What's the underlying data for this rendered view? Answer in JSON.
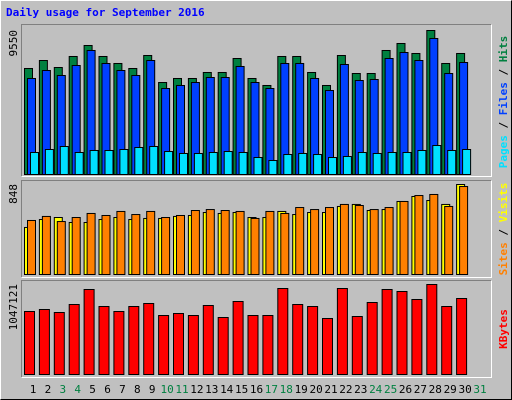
{
  "chart_data": [
    {
      "type": "bar",
      "title": "Daily usage for September 2016",
      "title_color": "#0000ff",
      "legend_separator": "/",
      "series": [
        {
          "name": "Pages",
          "color": "#00e0ff",
          "values": [
            1459,
            1658,
            1857,
            1459,
            1592,
            1592,
            1658,
            1791,
            1857,
            1525,
            1393,
            1393,
            1459,
            1525,
            1459,
            1127,
            928,
            1326,
            1393,
            1326,
            1127,
            1194,
            1459,
            1393,
            1459,
            1459,
            1592,
            1923,
            1592,
            1658,
            null
          ]
        },
        {
          "name": "Files",
          "color": "#0040ff",
          "values": [
            6367,
            6897,
            6566,
            7229,
            8224,
            7362,
            6897,
            6566,
            7560,
            5703,
            5903,
            6101,
            6433,
            6433,
            7163,
            6101,
            5703,
            7362,
            7362,
            6367,
            5571,
            7295,
            6234,
            6300,
            7693,
            8091,
            7560,
            9020,
            6698,
            7428,
            null
          ]
        },
        {
          "name": "Hits",
          "color": "#008040",
          "values": [
            7030,
            7560,
            7096,
            7826,
            8555,
            7826,
            7362,
            7030,
            7892,
            6101,
            6367,
            6367,
            6765,
            6765,
            7693,
            6367,
            5903,
            7826,
            7826,
            6765,
            5903,
            7892,
            6698,
            6698,
            8224,
            8688,
            8025,
            9550,
            7362,
            8025,
            null
          ]
        }
      ],
      "ylim": [
        0,
        9550
      ],
      "yticks": [
        9550
      ]
    },
    {
      "type": "bar",
      "legend_separator": "/",
      "series": [
        {
          "name": "Sites",
          "color": "#ff8000",
          "values": [
            509,
            547,
            499,
            537,
            575,
            556,
            594,
            565,
            594,
            537,
            556,
            603,
            612,
            603,
            594,
            528,
            594,
            575,
            631,
            612,
            631,
            660,
            650,
            612,
            631,
            688,
            744,
            754,
            641,
            829,
            null
          ]
        },
        {
          "name": "Visits",
          "color": "#ffff00",
          "values": [
            443,
            518,
            537,
            490,
            490,
            518,
            537,
            518,
            528,
            528,
            547,
            556,
            584,
            575,
            584,
            537,
            537,
            594,
            565,
            584,
            584,
            641,
            660,
            603,
            612,
            688,
            735,
            697,
            660,
            848,
            null
          ]
        }
      ],
      "ylim": [
        0,
        848
      ],
      "yticks": [
        848
      ]
    },
    {
      "type": "bar",
      "categories": [
        "1",
        "2",
        "3",
        "4",
        "5",
        "6",
        "7",
        "8",
        "9",
        "10",
        "11",
        "12",
        "13",
        "14",
        "15",
        "16",
        "17",
        "18",
        "19",
        "20",
        "21",
        "22",
        "23",
        "24",
        "25",
        "26",
        "27",
        "28",
        "29",
        "30",
        "31"
      ],
      "category_label_colors": [
        "#000000",
        "#000000",
        "#008040",
        "#008040",
        "#000000",
        "#000000",
        "#000000",
        "#000000",
        "#000000",
        "#008040",
        "#008040",
        "#000000",
        "#000000",
        "#000000",
        "#000000",
        "#000000",
        "#008040",
        "#008040",
        "#000000",
        "#000000",
        "#000000",
        "#000000",
        "#000000",
        "#008040",
        "#008040",
        "#000000",
        "#000000",
        "#000000",
        "#000000",
        "#000000",
        "#008040"
      ],
      "series": [
        {
          "name": "KBytes",
          "color": "#ff0000",
          "values": [
            732985,
            756254,
            721350,
            814427,
            988947,
            791158,
            732985,
            791158,
            826064,
            686447,
            709716,
            686447,
            802796,
            663178,
            849333,
            686447,
            686447,
            1000582,
            814427,
            791158,
            651544,
            1000582,
            674813,
            837698,
            988947,
            965681,
            872604,
            1047121,
            791158,
            884236,
            null
          ]
        }
      ],
      "ylim": [
        0,
        1047121
      ],
      "yticks": [
        1047121
      ]
    }
  ]
}
